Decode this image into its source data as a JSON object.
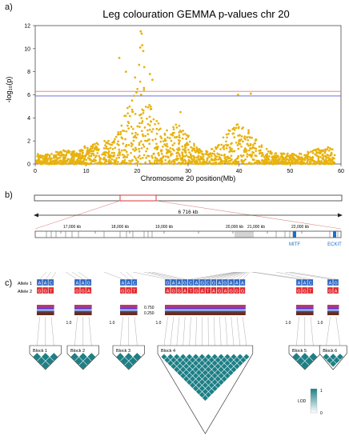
{
  "panels": {
    "a": "a)",
    "b": "b)",
    "c": "c)"
  },
  "chart_data": {
    "type": "scatter",
    "title": "Leg colouration GEMMA p-values chr 20",
    "xlabel": "Chromosome 20 position(Mb)",
    "ylabel": "-log₁₀(p)",
    "xlim": [
      0,
      60
    ],
    "ylim": [
      0,
      12
    ],
    "xticks": [
      0,
      10,
      20,
      30,
      40,
      50,
      60
    ],
    "yticks": [
      0,
      2,
      4,
      6,
      8,
      10,
      12
    ],
    "grid": false,
    "point_color": "#E8B20E",
    "thresholds": [
      {
        "y": 6.3,
        "color": "#E07A6A"
      },
      {
        "y": 5.9,
        "color": "#5B5BD6"
      }
    ],
    "peak_points": [
      {
        "x": 20.7,
        "y": 11.5
      },
      {
        "x": 20.9,
        "y": 11.3
      },
      {
        "x": 21.0,
        "y": 10.3
      },
      {
        "x": 20.6,
        "y": 10.1
      },
      {
        "x": 21.2,
        "y": 9.8
      },
      {
        "x": 20.4,
        "y": 8.6
      },
      {
        "x": 21.4,
        "y": 8.4
      },
      {
        "x": 22.5,
        "y": 7.8
      },
      {
        "x": 19.6,
        "y": 7.5
      },
      {
        "x": 23.0,
        "y": 7.3
      },
      {
        "x": 16.5,
        "y": 9.2
      },
      {
        "x": 17.8,
        "y": 8.0
      },
      {
        "x": 39.8,
        "y": 6.0
      },
      {
        "x": 42.3,
        "y": 6.1
      },
      {
        "x": 28.5,
        "y": 4.5
      }
    ]
  },
  "panel_b": {
    "scale_label": "6 716 kb",
    "kb_ticks": [
      "17,000 kb",
      "18,000 kb",
      "19,000 kb",
      "20,000 kb",
      "21,000 kb",
      "22,000 kb"
    ],
    "genes": [
      "MITF",
      "ECKIT"
    ],
    "gene_color": "#1A6FC9"
  },
  "panel_c": {
    "allele_labels": [
      "Allele 1",
      "Allele 2"
    ],
    "freq_labels": [
      "0.750",
      "0.250"
    ],
    "allele1_color": "#2E67C2",
    "allele2_color": "#E0262B",
    "blocks": [
      {
        "name": "Block 1",
        "a1": [
          "A",
          "A",
          "C"
        ],
        "a2": [
          "G",
          "G",
          "T"
        ]
      },
      {
        "name": "Block 2",
        "a1": [
          "A",
          "A",
          "G"
        ],
        "a2": [
          "G",
          "G",
          "A"
        ]
      },
      {
        "name": "Block 3",
        "a1": [
          "A",
          "A",
          "C"
        ],
        "a2": [
          "G",
          "G",
          "T"
        ]
      },
      {
        "name": "Block 4",
        "a1": [
          "G",
          "A",
          "A",
          "G",
          "C",
          "A",
          "G",
          "C",
          "G",
          "A",
          "G",
          "A",
          "A",
          "A"
        ],
        "a2": [
          "A",
          "G",
          "G",
          "A",
          "T",
          "G",
          "A",
          "T",
          "A",
          "G",
          "A",
          "G",
          "G",
          "G"
        ]
      },
      {
        "name": "Block 5",
        "a1": [
          "A",
          "A",
          "C"
        ],
        "a2": [
          "G",
          "G",
          "T"
        ]
      },
      {
        "name": "Block 6",
        "a1": [
          "A",
          "G"
        ],
        "a2": [
          "G",
          "A"
        ]
      }
    ],
    "ld_values": [
      "1.0",
      "1.0",
      "1.0",
      "1.0",
      "1.0"
    ],
    "legend": {
      "label": "LOD",
      "max": "1",
      "min": "0"
    },
    "ld_color": "#1E7F86"
  }
}
